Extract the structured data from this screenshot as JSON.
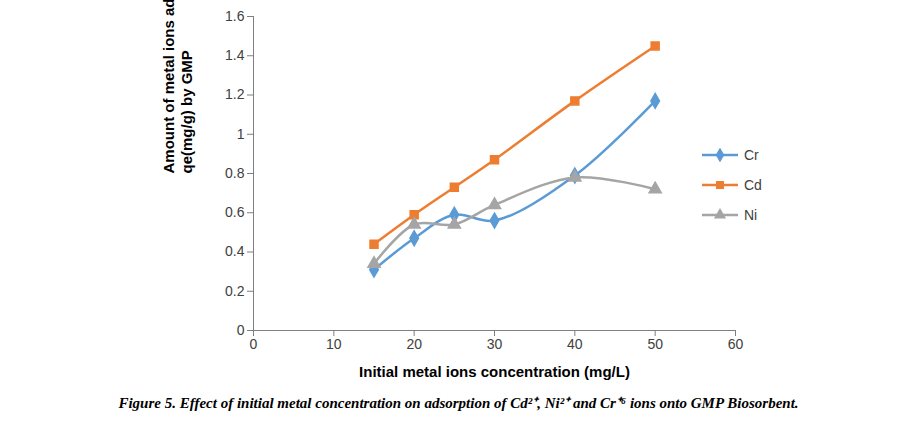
{
  "chart_data": {
    "type": "line",
    "caption": "Figure 5. Effect of initial metal concentration on adsorption of Cd²⁺, Ni²⁺ and Cr⁺⁶ ions onto GMP Biosorbent.",
    "x_label": "Initial metal ions concentration (mg/L)",
    "y_label": "Amount of metal ions adsorbed, qe(mg/g) by GMP",
    "x": [
      15,
      20,
      25,
      30,
      40,
      50
    ],
    "series": [
      {
        "name": "Cr",
        "color": "#5b9bd5",
        "marker": "diamond",
        "line_style": "smooth",
        "values": [
          0.31,
          0.47,
          0.59,
          0.56,
          0.79,
          1.17
        ]
      },
      {
        "name": "Cd",
        "color": "#ed7d31",
        "marker": "square",
        "line_style": "smooth",
        "values": [
          0.44,
          0.59,
          0.73,
          0.87,
          1.17,
          1.45
        ]
      },
      {
        "name": "Ni",
        "color": "#a5a5a5",
        "marker": "triangle",
        "line_style": "smooth",
        "values": [
          0.34,
          0.54,
          0.54,
          0.64,
          0.78,
          0.72
        ]
      }
    ],
    "xlim": [
      0,
      60
    ],
    "xticks": [
      0,
      10,
      20,
      30,
      40,
      50,
      60
    ],
    "ylim": [
      0,
      1.6
    ],
    "yticks": [
      0,
      0.2,
      0.4,
      0.6,
      0.8,
      1,
      1.2,
      1.4,
      1.6
    ],
    "grid": false,
    "legend": "right"
  }
}
